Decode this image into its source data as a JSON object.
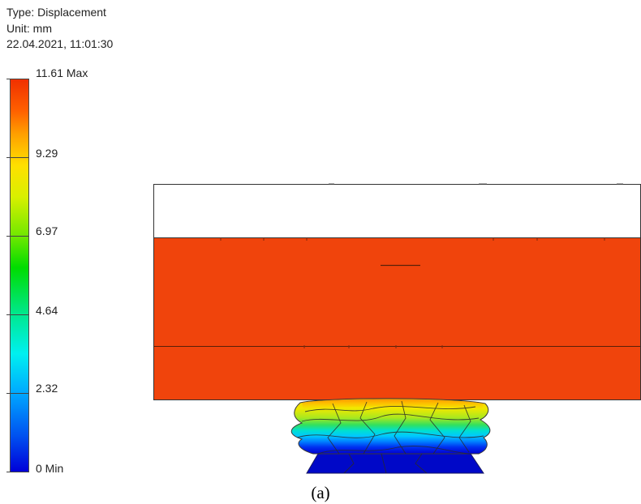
{
  "legend": {
    "type_line": "Type: Displacement",
    "unit_line": "Unit: mm",
    "timestamp_line": "22.04.2021, 11:01:30",
    "ticks": [
      {
        "label": "11.61 Max",
        "value": 11.61
      },
      {
        "label": "9.29",
        "value": 9.29
      },
      {
        "label": "6.97",
        "value": 6.97
      },
      {
        "label": "4.64",
        "value": 4.64
      },
      {
        "label": "2.32",
        "value": 2.32
      },
      {
        "label": "0 Min",
        "value": 0
      }
    ],
    "min_value": 0,
    "max_value": 11.61
  },
  "colors": {
    "plate_fill": "#f0440c",
    "max_color": "#f03000",
    "min_color": "#0000d8"
  },
  "caption": "(a)"
}
